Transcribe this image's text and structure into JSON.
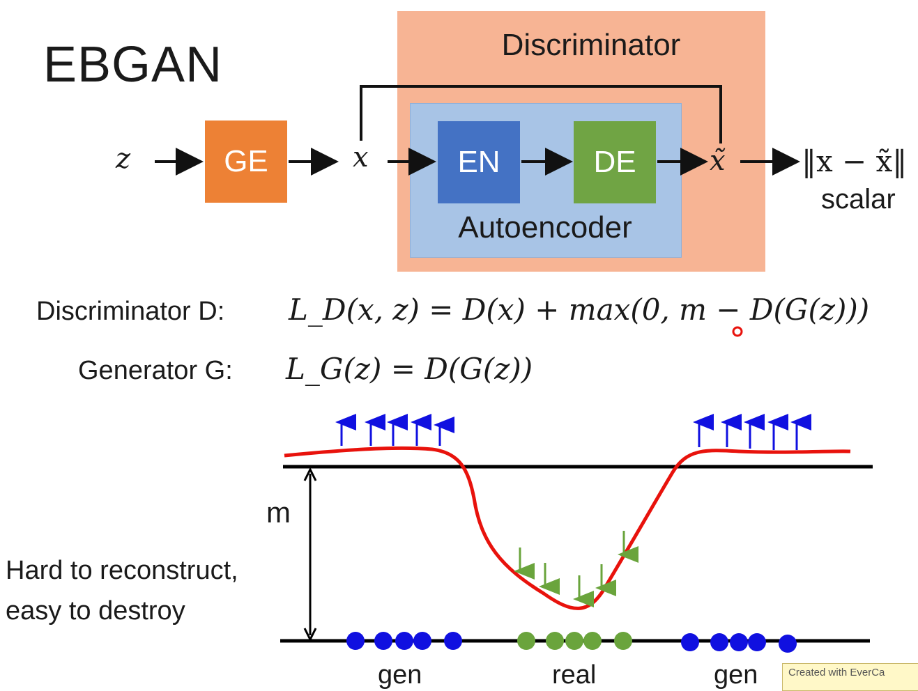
{
  "title": "EBGAN",
  "discriminator_label": "Discriminator",
  "autoencoder_label": "Autoencoder",
  "blocks": {
    "ge": "GE",
    "en": "EN",
    "de": "DE"
  },
  "vars": {
    "z": "z",
    "x": "x",
    "x_tilde": "x̃"
  },
  "output": {
    "norm": "‖x − x̃‖",
    "scalar": "scalar"
  },
  "equations": {
    "disc_label": "Discriminator D:",
    "disc_eq": "L_D(x, z) = D(x) + max(0, m − D(G(z)))",
    "gen_label": "Generator G:",
    "gen_eq": "L_G(z) = D(G(z))"
  },
  "plot": {
    "m_label": "m",
    "side_text_line1": "Hard to reconstruct,",
    "side_text_line2": "easy to destroy",
    "gen_left": "gen",
    "real": "real",
    "gen_right": "gen",
    "colors": {
      "curve": "#e8120c",
      "gen": "#1010e0",
      "real": "#6aa43c",
      "up_arrow": "#1010e0",
      "down_arrow": "#6aa43c"
    }
  },
  "watermark": "Created with EverCa"
}
